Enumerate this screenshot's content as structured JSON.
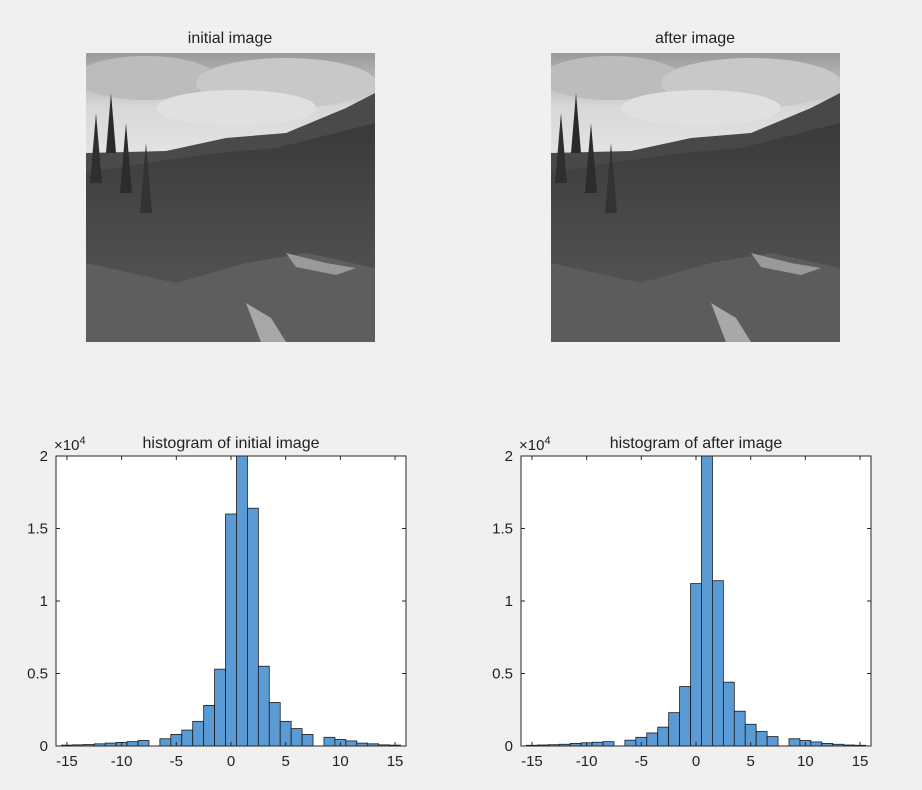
{
  "images": [
    {
      "title": "initial image"
    },
    {
      "title": "after image"
    }
  ],
  "chart_data": [
    {
      "type": "bar",
      "title": "histogram of initial image",
      "xlabel": "",
      "ylabel": "",
      "xlim": [
        -16,
        16
      ],
      "ylim": [
        0,
        20000
      ],
      "y_exponent_label": "×10",
      "y_exponent_power": "4",
      "xticks": [
        -15,
        -10,
        -5,
        0,
        5,
        10,
        15
      ],
      "yticks": [
        0,
        0.5,
        1,
        1.5,
        2
      ],
      "xtick_labels": [
        "-15",
        "-10",
        "-5",
        "0",
        "5",
        "10",
        "15"
      ],
      "ytick_labels": [
        "0",
        "0.5",
        "1",
        "1.5",
        "2"
      ],
      "bar_color": "#5b9bd5",
      "x": [
        -15,
        -14,
        -13,
        -12,
        -11,
        -10,
        -9,
        -8,
        -7,
        -6,
        -5,
        -4,
        -3,
        -2,
        -1,
        0,
        1,
        2,
        3,
        4,
        5,
        6,
        7,
        8,
        9,
        10,
        11,
        12,
        13,
        14,
        15
      ],
      "values": [
        60,
        80,
        100,
        150,
        200,
        250,
        300,
        380,
        0,
        500,
        800,
        1100,
        1700,
        2800,
        5300,
        16000,
        20000,
        16400,
        5500,
        3000,
        1700,
        1200,
        800,
        0,
        600,
        450,
        350,
        200,
        150,
        80,
        60
      ]
    },
    {
      "type": "bar",
      "title": "histogram of after image",
      "xlabel": "",
      "ylabel": "",
      "xlim": [
        -16,
        16
      ],
      "ylim": [
        0,
        20000
      ],
      "y_exponent_label": "×10",
      "y_exponent_power": "4",
      "xticks": [
        -15,
        -10,
        -5,
        0,
        5,
        10,
        15
      ],
      "yticks": [
        0,
        0.5,
        1,
        1.5,
        2
      ],
      "xtick_labels": [
        "-15",
        "-10",
        "-5",
        "0",
        "5",
        "10",
        "15"
      ],
      "ytick_labels": [
        "0",
        "0.5",
        "1",
        "1.5",
        "2"
      ],
      "bar_color": "#5b9bd5",
      "x": [
        -15,
        -14,
        -13,
        -12,
        -11,
        -10,
        -9,
        -8,
        -7,
        -6,
        -5,
        -4,
        -3,
        -2,
        -1,
        0,
        1,
        2,
        3,
        4,
        5,
        6,
        7,
        8,
        9,
        10,
        11,
        12,
        13,
        14,
        15
      ],
      "values": [
        50,
        70,
        90,
        120,
        180,
        220,
        260,
        300,
        0,
        400,
        600,
        900,
        1300,
        2300,
        4100,
        11200,
        20000,
        11400,
        4400,
        2400,
        1500,
        1000,
        650,
        0,
        500,
        380,
        280,
        180,
        120,
        70,
        50
      ]
    }
  ]
}
